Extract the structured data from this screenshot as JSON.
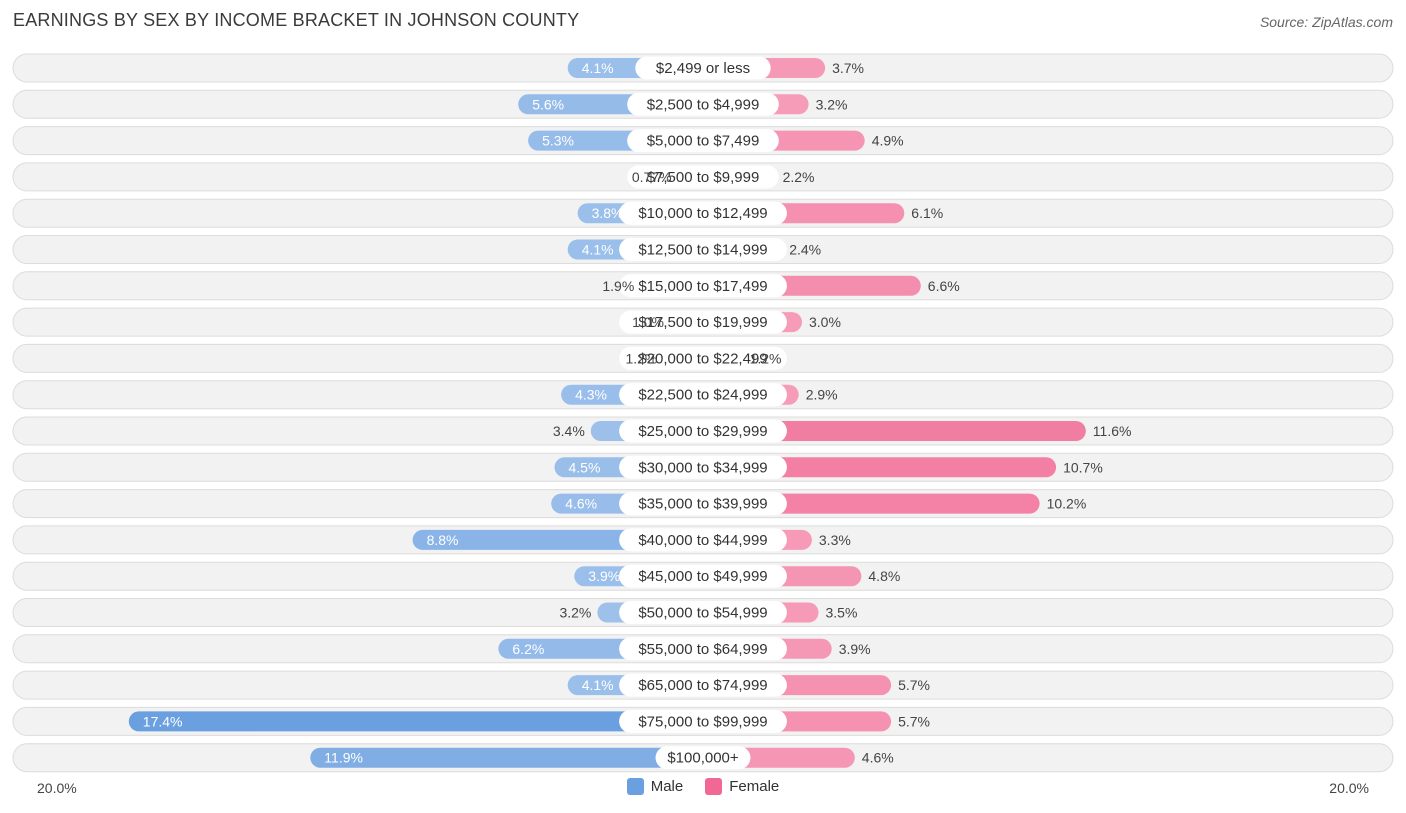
{
  "title": "EARNINGS BY SEX BY INCOME BRACKET IN JOHNSON COUNTY",
  "source": "Source: ZipAtlas.com",
  "colors": {
    "male": "#6ba0e0",
    "male_light": "#a9c8ee",
    "female": "#f06893",
    "female_light": "#f7a6c0",
    "row_bg": "#f2f2f2",
    "row_border": "#dcdcdc"
  },
  "axis": {
    "left_label": "20.0%",
    "right_label": "20.0%"
  },
  "legend": {
    "male": "Male",
    "female": "Female"
  },
  "chart_data": {
    "type": "bar",
    "orientation": "horizontal-diverging",
    "title": "EARNINGS BY SEX BY INCOME BRACKET IN JOHNSON COUNTY",
    "xlim": [
      -20,
      20
    ],
    "categories": [
      "$2,499 or less",
      "$2,500 to $4,999",
      "$5,000 to $7,499",
      "$7,500 to $9,999",
      "$10,000 to $12,499",
      "$12,500 to $14,999",
      "$15,000 to $17,499",
      "$17,500 to $19,999",
      "$20,000 to $22,499",
      "$22,500 to $24,999",
      "$25,000 to $29,999",
      "$30,000 to $34,999",
      "$35,000 to $39,999",
      "$40,000 to $44,999",
      "$45,000 to $49,999",
      "$50,000 to $54,999",
      "$55,000 to $64,999",
      "$65,000 to $74,999",
      "$75,000 to $99,999",
      "$100,000+"
    ],
    "series": [
      {
        "name": "Male",
        "side": "left",
        "values": [
          4.1,
          5.6,
          5.3,
          0.77,
          3.8,
          4.1,
          1.9,
          1.0,
          1.2,
          4.3,
          3.4,
          4.5,
          4.6,
          8.8,
          3.9,
          3.2,
          6.2,
          4.1,
          17.4,
          11.9
        ],
        "labels": [
          "4.1%",
          "5.6%",
          "5.3%",
          "0.77%",
          "3.8%",
          "4.1%",
          "1.9%",
          "1.0%",
          "1.2%",
          "4.3%",
          "3.4%",
          "4.5%",
          "4.6%",
          "8.8%",
          "3.9%",
          "3.2%",
          "6.2%",
          "4.1%",
          "17.4%",
          "11.9%"
        ]
      },
      {
        "name": "Female",
        "side": "right",
        "values": [
          3.7,
          3.2,
          4.9,
          2.2,
          6.1,
          2.4,
          6.6,
          3.0,
          1.2,
          2.9,
          11.6,
          10.7,
          10.2,
          3.3,
          4.8,
          3.5,
          3.9,
          5.7,
          5.7,
          4.6
        ],
        "labels": [
          "3.7%",
          "3.2%",
          "4.9%",
          "2.2%",
          "6.1%",
          "2.4%",
          "6.6%",
          "3.0%",
          "1.2%",
          "2.9%",
          "11.6%",
          "10.7%",
          "10.2%",
          "3.3%",
          "4.8%",
          "3.5%",
          "3.9%",
          "5.7%",
          "5.7%",
          "4.6%"
        ]
      }
    ],
    "legend_position": "bottom-center"
  }
}
